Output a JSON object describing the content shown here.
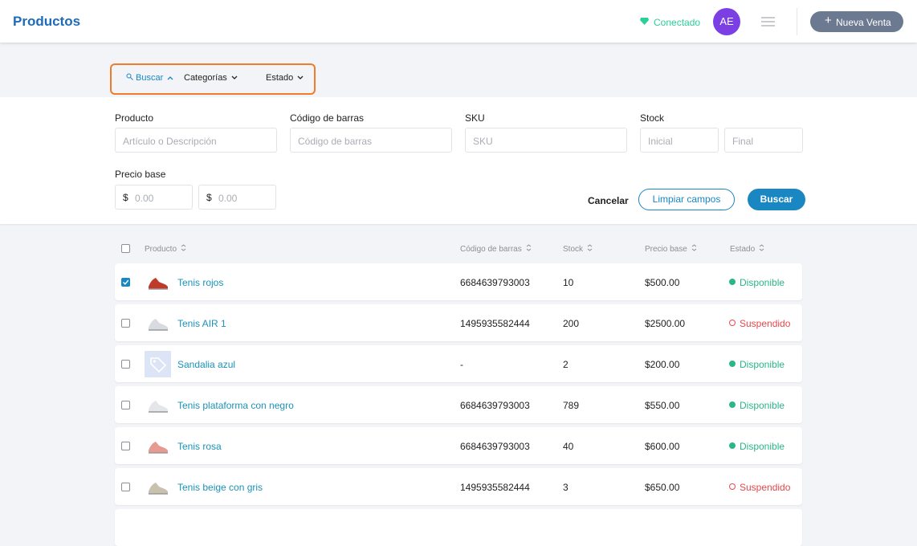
{
  "header": {
    "title": "Productos",
    "status": "Conectado",
    "avatar": "AE",
    "new_sale": "Nueva Venta"
  },
  "filters": {
    "tabs": [
      "Buscar",
      "Categorías",
      "Estado"
    ]
  },
  "form": {
    "fields": [
      {
        "label": "Producto",
        "placeholders": [
          "Artículo o Descripción"
        ]
      },
      {
        "label": "Código de barras",
        "placeholders": [
          "Código de barras"
        ]
      },
      {
        "label": "SKU",
        "placeholders": [
          "SKU"
        ]
      },
      {
        "label": "Stock",
        "placeholders": [
          "Inicial",
          "Final"
        ]
      }
    ],
    "price": {
      "label": "Precio base",
      "currency": "$",
      "placeholders": [
        "0.00",
        "0.00"
      ]
    },
    "buttons": {
      "cancel": "Cancelar",
      "clear": "Limpiar campos",
      "search": "Buscar"
    }
  },
  "table": {
    "columns": [
      "Producto",
      "Código de barras",
      "Stock",
      "Precio base",
      "Estado"
    ],
    "rows": [
      {
        "checked": true,
        "thumb": "#c0392b",
        "name": "Tenis rojos",
        "barcode": "6684639793003",
        "stock": "10",
        "price": "$500.00",
        "status": "Disponible",
        "status_color": "#2bb58a",
        "status_filled": true
      },
      {
        "checked": false,
        "thumb": "#d8dbe0",
        "name": "Tenis AIR 1",
        "barcode": "1495935582444",
        "stock": "200",
        "price": "$2500.00",
        "status": "Suspendido",
        "status_color": "#e5484d",
        "status_filled": false
      },
      {
        "checked": false,
        "thumb": "placeholder",
        "name": "Sandalia azul",
        "barcode": "-",
        "stock": "2",
        "price": "$200.00",
        "status": "Disponible",
        "status_color": "#2bb58a",
        "status_filled": true
      },
      {
        "checked": false,
        "thumb": "#e4e6ea",
        "name": "Tenis plataforma con negro",
        "barcode": "6684639793003",
        "stock": "789",
        "price": "$550.00",
        "status": "Disponible",
        "status_color": "#2bb58a",
        "status_filled": true
      },
      {
        "checked": false,
        "thumb": "#e79a8f",
        "name": "Tenis rosa",
        "barcode": "6684639793003",
        "stock": "40",
        "price": "$600.00",
        "status": "Disponible",
        "status_color": "#2bb58a",
        "status_filled": true
      },
      {
        "checked": false,
        "thumb": "#c9c1ae",
        "name": "Tenis beige con gris",
        "barcode": "1495935582444",
        "stock": "3",
        "price": "$650.00",
        "status": "Suspendido",
        "status_color": "#e5484d",
        "status_filled": false
      }
    ]
  }
}
